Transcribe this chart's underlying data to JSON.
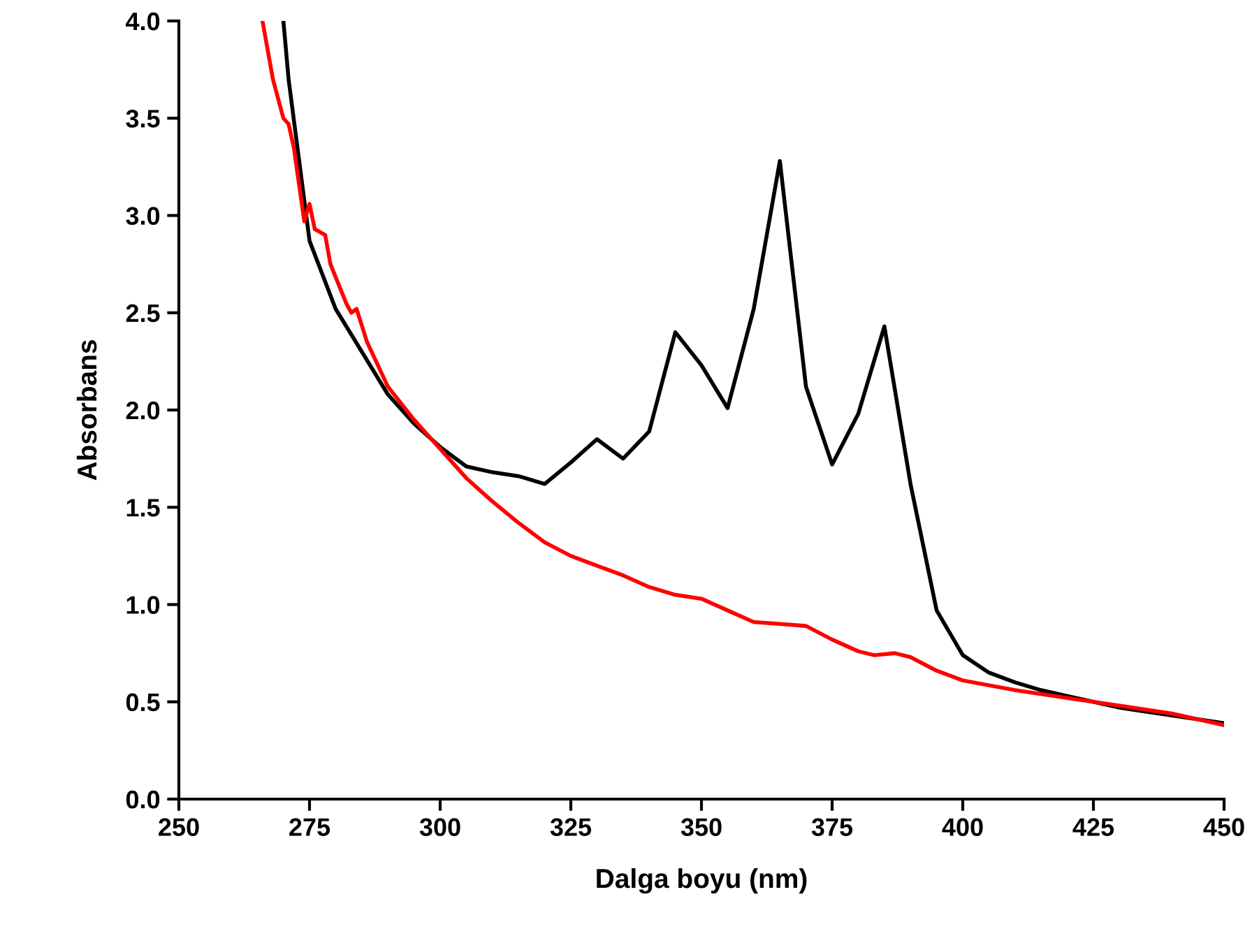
{
  "chart_data": {
    "type": "line",
    "xlabel": "Dalga boyu (nm)",
    "ylabel": "Absorbans",
    "xlim": [
      250,
      450
    ],
    "xticks": [
      250,
      275,
      300,
      325,
      350,
      375,
      400,
      425,
      450
    ],
    "ylim": [
      0.0,
      4.0
    ],
    "yticks": [
      {
        "value": 0,
        "label": "0.0"
      },
      {
        "value": 0.5,
        "label": "0.5"
      },
      {
        "value": 1,
        "label": "1.0"
      },
      {
        "value": 1.5,
        "label": "1.5"
      },
      {
        "value": 2,
        "label": "2.0"
      },
      {
        "value": 2.5,
        "label": "2.5"
      },
      {
        "value": 3,
        "label": "3.0"
      },
      {
        "value": 3.5,
        "label": "3.5"
      },
      {
        "value": 4,
        "label": "4.0"
      }
    ],
    "grid": false,
    "marker": "none",
    "line_style": "solid",
    "series": [
      {
        "color": "#000000",
        "x": [
          270,
          271,
          275,
          280,
          285,
          290,
          295,
          300,
          305,
          310,
          315,
          320,
          325,
          330,
          335,
          340,
          345,
          350,
          355,
          360,
          365,
          370,
          375,
          380,
          385,
          390,
          395,
          400,
          405,
          410,
          415,
          420,
          425,
          430,
          435,
          440,
          445,
          450
        ],
        "values": [
          4.0,
          3.7,
          2.87,
          2.52,
          2.3,
          2.08,
          1.93,
          1.81,
          1.71,
          1.68,
          1.66,
          1.62,
          1.73,
          1.85,
          1.75,
          1.89,
          2.4,
          2.23,
          2.01,
          2.52,
          3.28,
          2.12,
          1.72,
          1.98,
          2.43,
          1.62,
          0.97,
          0.74,
          0.65,
          0.6,
          0.56,
          0.53,
          0.5,
          0.47,
          0.45,
          0.43,
          0.41,
          0.39
        ]
      },
      {
        "color": "#ff0000",
        "x": [
          266,
          268,
          270,
          271,
          272,
          274,
          275,
          276,
          278,
          279,
          282,
          283,
          284,
          286,
          290,
          295,
          300,
          305,
          310,
          315,
          320,
          325,
          330,
          335,
          340,
          345,
          350,
          355,
          360,
          365,
          370,
          375,
          380,
          383,
          387,
          390,
          395,
          400,
          410,
          420,
          430,
          440,
          450
        ],
        "values": [
          4.0,
          3.7,
          3.5,
          3.47,
          3.35,
          2.97,
          3.06,
          2.93,
          2.9,
          2.75,
          2.55,
          2.5,
          2.52,
          2.35,
          2.12,
          1.95,
          1.8,
          1.65,
          1.53,
          1.42,
          1.32,
          1.25,
          1.2,
          1.15,
          1.09,
          1.05,
          1.03,
          0.97,
          0.91,
          0.9,
          0.89,
          0.82,
          0.76,
          0.74,
          0.75,
          0.73,
          0.66,
          0.61,
          0.56,
          0.52,
          0.48,
          0.44,
          0.38
        ]
      }
    ]
  }
}
